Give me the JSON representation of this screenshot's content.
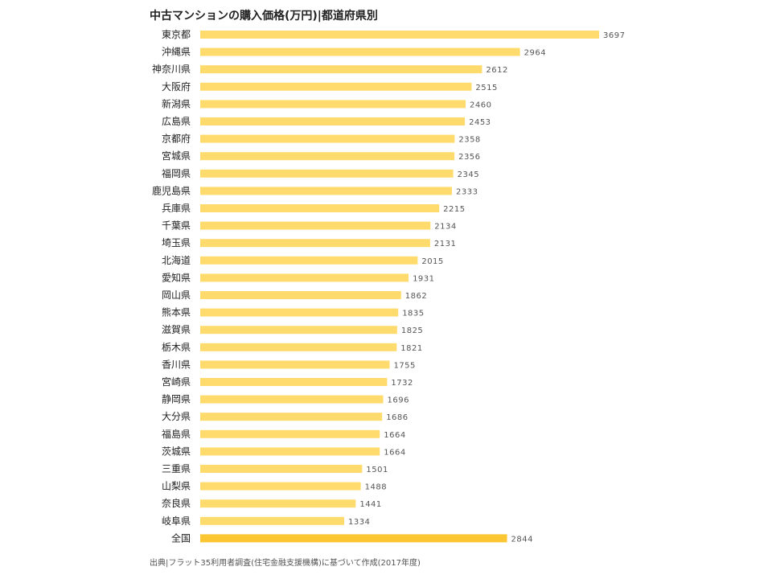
{
  "chart_data": {
    "type": "bar",
    "orientation": "horizontal",
    "title": "中古マンションの購入価格(万円)|都道府県別",
    "xlabel": "",
    "ylabel": "",
    "xlim": [
      0,
      3697
    ],
    "grid": false,
    "legend": "none",
    "categories": [
      "東京都",
      "沖縄県",
      "神奈川県",
      "大阪府",
      "新潟県",
      "広島県",
      "京都府",
      "宮城県",
      "福岡県",
      "鹿児島県",
      "兵庫県",
      "千葉県",
      "埼玉県",
      "北海道",
      "愛知県",
      "岡山県",
      "熊本県",
      "滋賀県",
      "栃木県",
      "香川県",
      "宮崎県",
      "静岡県",
      "大分県",
      "福島県",
      "茨城県",
      "三重県",
      "山梨県",
      "奈良県",
      "岐阜県",
      "全国"
    ],
    "values": [
      3697,
      2964,
      2612,
      2515,
      2460,
      2453,
      2358,
      2356,
      2345,
      2333,
      2215,
      2134,
      2131,
      2015,
      1931,
      1862,
      1835,
      1825,
      1821,
      1755,
      1732,
      1696,
      1686,
      1664,
      1664,
      1501,
      1488,
      1441,
      1334,
      2844
    ],
    "bar_color": "#FFDB6E",
    "highlight_category": "全国",
    "highlight_color": "#FBC631"
  },
  "footer": {
    "source": "出典|フラット35利用者調査(住宅金融支援機構)に基づいて作成(2017年度)"
  }
}
